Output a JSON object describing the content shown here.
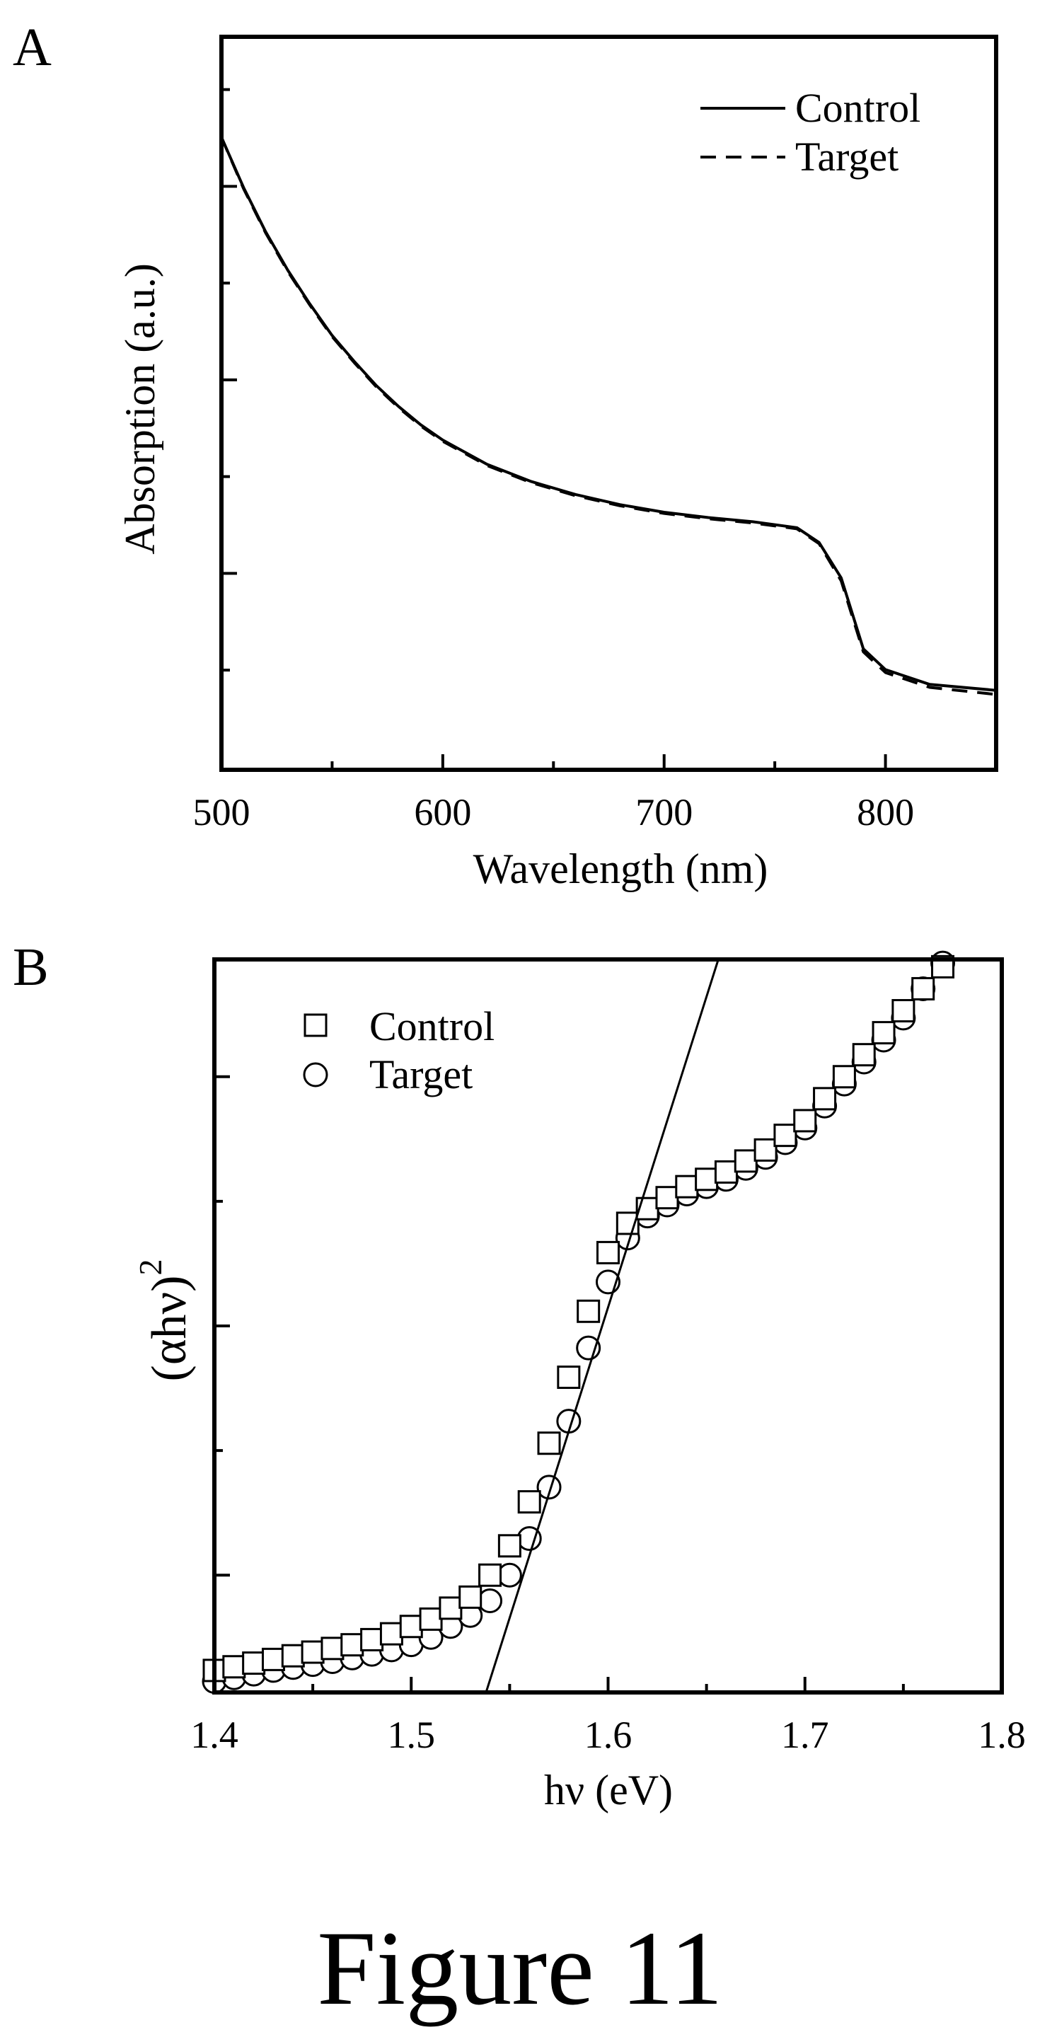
{
  "figure": {
    "caption": "Figure 11",
    "colors": {
      "ink": "#000000",
      "background": "#ffffff"
    }
  },
  "chart_data": [
    {
      "panel": "A",
      "type": "line",
      "xlabel": "Wavelength (nm)",
      "ylabel": "Absorption (a.u.)",
      "xlim": [
        500,
        850
      ],
      "ylim": [
        0,
        1
      ],
      "xticks": [
        500,
        600,
        700,
        800
      ],
      "yticks_labeled": false,
      "legend_position": "top-right",
      "grid": false,
      "series": [
        {
          "name": "Control",
          "style": "solid",
          "x": [
            500,
            510,
            520,
            530,
            540,
            550,
            560,
            570,
            580,
            590,
            600,
            620,
            640,
            660,
            680,
            700,
            720,
            740,
            760,
            770,
            780,
            790,
            800,
            820,
            850
          ],
          "y": [
            1.0,
            0.915,
            0.84,
            0.775,
            0.718,
            0.665,
            0.621,
            0.58,
            0.545,
            0.514,
            0.488,
            0.447,
            0.418,
            0.396,
            0.379,
            0.366,
            0.357,
            0.35,
            0.34,
            0.315,
            0.255,
            0.135,
            0.1,
            0.075,
            0.065
          ]
        },
        {
          "name": "Target",
          "style": "dashed",
          "x": [
            500,
            510,
            520,
            530,
            540,
            550,
            560,
            570,
            580,
            590,
            600,
            620,
            640,
            660,
            680,
            700,
            720,
            740,
            760,
            770,
            780,
            790,
            800,
            820,
            850
          ],
          "y": [
            1.0,
            0.913,
            0.838,
            0.773,
            0.716,
            0.663,
            0.619,
            0.578,
            0.543,
            0.512,
            0.486,
            0.445,
            0.416,
            0.394,
            0.377,
            0.364,
            0.355,
            0.348,
            0.338,
            0.313,
            0.25,
            0.13,
            0.095,
            0.07,
            0.058
          ]
        }
      ]
    },
    {
      "panel": "B",
      "type": "scatter",
      "xlabel": "hν (eV)",
      "ylabel": "(αhν)",
      "ylabel_superscript": "2",
      "xlim": [
        1.4,
        1.8
      ],
      "ylim": [
        0,
        1
      ],
      "xticks": [
        1.4,
        1.5,
        1.6,
        1.7,
        1.8
      ],
      "yticks_labeled": false,
      "legend_position": "top-left",
      "grid": false,
      "fit_line": {
        "x": [
          1.538,
          1.656
        ],
        "y": [
          0.0,
          1.0
        ]
      },
      "series": [
        {
          "name": "Control",
          "marker": "square",
          "x": [
            1.4,
            1.41,
            1.42,
            1.43,
            1.44,
            1.45,
            1.46,
            1.47,
            1.48,
            1.49,
            1.5,
            1.51,
            1.52,
            1.53,
            1.54,
            1.55,
            1.56,
            1.57,
            1.58,
            1.59,
            1.6,
            1.61,
            1.62,
            1.63,
            1.64,
            1.65,
            1.66,
            1.67,
            1.68,
            1.69,
            1.7,
            1.71,
            1.72,
            1.73,
            1.74,
            1.75,
            1.76,
            1.77
          ],
          "y": [
            0.03,
            0.035,
            0.04,
            0.045,
            0.05,
            0.055,
            0.06,
            0.065,
            0.072,
            0.08,
            0.09,
            0.1,
            0.115,
            0.13,
            0.16,
            0.2,
            0.26,
            0.34,
            0.43,
            0.52,
            0.6,
            0.64,
            0.66,
            0.675,
            0.69,
            0.7,
            0.71,
            0.725,
            0.74,
            0.76,
            0.78,
            0.81,
            0.84,
            0.87,
            0.9,
            0.93,
            0.96,
            0.99
          ]
        },
        {
          "name": "Target",
          "marker": "circle",
          "x": [
            1.4,
            1.41,
            1.42,
            1.43,
            1.44,
            1.45,
            1.46,
            1.47,
            1.48,
            1.49,
            1.5,
            1.51,
            1.52,
            1.53,
            1.54,
            1.55,
            1.56,
            1.57,
            1.58,
            1.59,
            1.6,
            1.61,
            1.62,
            1.63,
            1.64,
            1.65,
            1.66,
            1.67,
            1.68,
            1.69,
            1.7,
            1.71,
            1.72,
            1.73,
            1.74,
            1.75,
            1.76,
            1.77
          ],
          "y": [
            0.015,
            0.02,
            0.025,
            0.03,
            0.034,
            0.038,
            0.042,
            0.047,
            0.052,
            0.058,
            0.065,
            0.075,
            0.09,
            0.105,
            0.125,
            0.16,
            0.21,
            0.28,
            0.37,
            0.47,
            0.56,
            0.62,
            0.65,
            0.665,
            0.68,
            0.69,
            0.7,
            0.715,
            0.73,
            0.75,
            0.77,
            0.8,
            0.83,
            0.86,
            0.89,
            0.92,
            0.96,
            0.995
          ]
        }
      ]
    }
  ]
}
